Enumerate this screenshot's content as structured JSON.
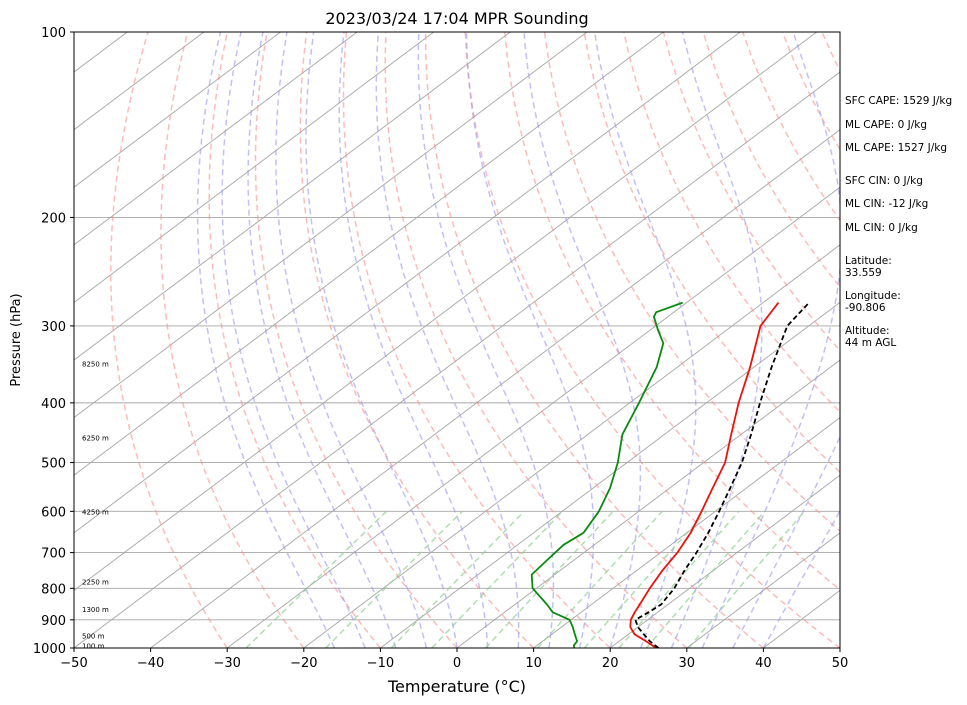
{
  "chart_data": {
    "type": "line",
    "title": "2023/03/24 17:04 MPR Sounding",
    "xlabel": "Temperature (°C)",
    "ylabel": "Pressure (hPa)",
    "xlim": [
      -50,
      50
    ],
    "ylim": [
      1000,
      100
    ],
    "y_scale": "log",
    "skew": true,
    "x_ticks": [
      -50,
      -40,
      -30,
      -20,
      -10,
      0,
      10,
      20,
      30,
      40,
      50
    ],
    "y_ticks": [
      1000,
      900,
      800,
      700,
      600,
      500,
      400,
      300,
      200,
      100
    ],
    "height_labels": [
      {
        "p": 990,
        "label": "100 m"
      },
      {
        "p": 955,
        "label": "500 m"
      },
      {
        "p": 865,
        "label": "1300 m"
      },
      {
        "p": 780,
        "label": "2250 m"
      },
      {
        "p": 600,
        "label": "4250 m"
      },
      {
        "p": 455,
        "label": "6250 m"
      },
      {
        "p": 345,
        "label": "8250 m"
      }
    ],
    "series": [
      {
        "kind": "temperature",
        "color": "#e8140e",
        "style": "solid",
        "points": [
          [
            1000,
            26.0
          ],
          [
            975,
            23.5
          ],
          [
            950,
            20.8
          ],
          [
            925,
            19.0
          ],
          [
            900,
            17.8
          ],
          [
            875,
            17.0
          ],
          [
            850,
            16.3
          ],
          [
            800,
            14.8
          ],
          [
            750,
            13.4
          ],
          [
            700,
            12.2
          ],
          [
            650,
            10.5
          ],
          [
            600,
            8.2
          ],
          [
            550,
            5.6
          ],
          [
            500,
            2.8
          ],
          [
            450,
            -1.3
          ],
          [
            400,
            -5.8
          ],
          [
            350,
            -10.5
          ],
          [
            300,
            -16.3
          ],
          [
            275,
            -18.0
          ]
        ]
      },
      {
        "kind": "dewpoint",
        "color": "#0b8a12",
        "style": "solid",
        "points": [
          [
            1000,
            15.3
          ],
          [
            990,
            14.8
          ],
          [
            975,
            14.5
          ],
          [
            950,
            13.0
          ],
          [
            925,
            11.5
          ],
          [
            900,
            9.8
          ],
          [
            875,
            6.3
          ],
          [
            850,
            4.2
          ],
          [
            800,
            -0.5
          ],
          [
            760,
            -3.0
          ],
          [
            720,
            -3.5
          ],
          [
            680,
            -4.0
          ],
          [
            650,
            -3.5
          ],
          [
            600,
            -5.2
          ],
          [
            550,
            -7.8
          ],
          [
            500,
            -11.2
          ],
          [
            450,
            -15.5
          ],
          [
            400,
            -18.8
          ],
          [
            350,
            -22.7
          ],
          [
            320,
            -26.0
          ],
          [
            305,
            -28.9
          ],
          [
            290,
            -31.8
          ],
          [
            285,
            -32.3
          ],
          [
            275,
            -30.5
          ]
        ]
      },
      {
        "kind": "parcel",
        "color": "#000000",
        "style": "dashed",
        "points": [
          [
            1000,
            26.3
          ],
          [
            975,
            24.0
          ],
          [
            950,
            22.0
          ],
          [
            925,
            20.0
          ],
          [
            900,
            18.4
          ],
          [
            875,
            18.8
          ],
          [
            850,
            19.1
          ],
          [
            800,
            18.0
          ],
          [
            750,
            16.3
          ],
          [
            700,
            14.7
          ],
          [
            650,
            12.8
          ],
          [
            600,
            10.5
          ],
          [
            550,
            7.9
          ],
          [
            500,
            5.0
          ],
          [
            450,
            1.3
          ],
          [
            400,
            -3.0
          ],
          [
            350,
            -7.7
          ],
          [
            300,
            -12.8
          ],
          [
            275,
            -14.0
          ]
        ]
      }
    ],
    "background_lines": {
      "isotherm_color": "#a6a6a6",
      "dry_adiabat_color": "#ff8c8c",
      "moist_adiabat_color": "#9898f2",
      "mixing_ratio_color": "#8fcf8f"
    }
  },
  "info": {
    "sfc_cape": "SFC CAPE: 1529 J/kg",
    "ml_cape_1": "ML CAPE: 0 J/kg",
    "ml_cape_2": "ML CAPE: 1527 J/kg",
    "sfc_cin": "SFC CIN: 0 J/kg",
    "ml_cin_1": "ML CIN: -12 J/kg",
    "ml_cin_2": "ML CIN: 0 J/kg",
    "latitude": "Latitude:\n33.559",
    "longitude": "Longitude:\n-90.806",
    "altitude": "Altitude:\n44 m AGL"
  }
}
